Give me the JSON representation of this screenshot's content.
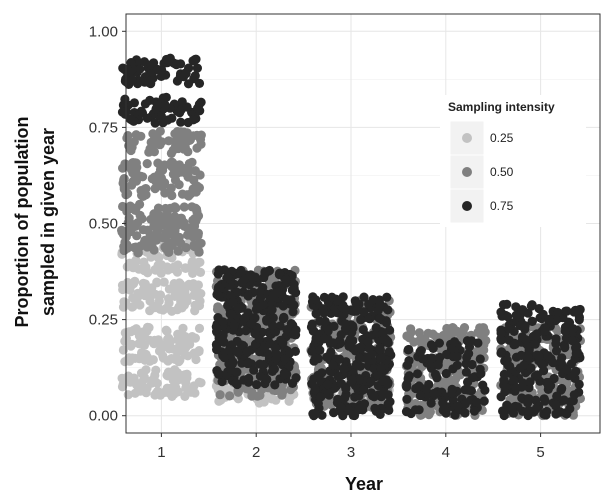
{
  "chart_data": {
    "type": "scatter",
    "jittered": true,
    "xlabel": "Year",
    "ylabel_lines": [
      "Proportion of population",
      "sampled in given year"
    ],
    "categories": [
      "1",
      "2",
      "3",
      "4",
      "5"
    ],
    "ylim": [
      0.0,
      1.0
    ],
    "yticks": [
      "0.00",
      "0.25",
      "0.50",
      "0.75",
      "1.00"
    ],
    "grid": true,
    "legend": {
      "title": "Sampling intensity",
      "placement": "top-right",
      "entries": [
        {
          "label": "0.25",
          "color": "#c2c2c2"
        },
        {
          "label": "0.50",
          "color": "#808080"
        },
        {
          "label": "0.75",
          "color": "#262626"
        }
      ]
    },
    "series": [
      {
        "intensity": "0.25",
        "color": "#c2c2c2",
        "years": [
          {
            "year": 1,
            "bands": [
              [
                0.05,
                0.12,
                1.0
              ],
              [
                0.14,
                0.23,
                1.0
              ],
              [
                0.27,
                0.35,
                1.0
              ],
              [
                0.37,
                0.45,
                0.9
              ]
            ]
          },
          {
            "year": 2,
            "bands": [
              [
                0.03,
                0.12,
                1.0
              ]
            ]
          },
          {
            "year": 3,
            "bands": [
              [
                0.03,
                0.09,
                0.6
              ]
            ]
          }
        ]
      },
      {
        "intensity": "0.50",
        "color": "#808080",
        "years": [
          {
            "year": 1,
            "bands": [
              [
                0.42,
                0.55,
                1.0
              ],
              [
                0.57,
                0.66,
                1.0
              ],
              [
                0.68,
                0.74,
                0.9
              ]
            ]
          },
          {
            "year": 2,
            "bands": [
              [
                0.05,
                0.38,
                1.0
              ]
            ]
          },
          {
            "year": 3,
            "bands": [
              [
                0.02,
                0.3,
                1.0
              ]
            ]
          },
          {
            "year": 4,
            "bands": [
              [
                0.0,
                0.23,
                1.0
              ]
            ]
          },
          {
            "year": 5,
            "bands": [
              [
                0.0,
                0.24,
                1.0
              ]
            ]
          }
        ]
      },
      {
        "intensity": "0.75",
        "color": "#262626",
        "years": [
          {
            "year": 1,
            "bands": [
              [
                0.76,
                0.83,
                0.8
              ],
              [
                0.86,
                0.93,
                1.0
              ]
            ]
          },
          {
            "year": 2,
            "bands": [
              [
                0.08,
                0.38,
                1.0
              ]
            ]
          },
          {
            "year": 3,
            "bands": [
              [
                0.0,
                0.31,
                1.0
              ]
            ]
          },
          {
            "year": 4,
            "bands": [
              [
                0.0,
                0.2,
                0.55
              ]
            ]
          },
          {
            "year": 5,
            "bands": [
              [
                0.0,
                0.29,
                0.8
              ]
            ]
          }
        ]
      }
    ]
  }
}
